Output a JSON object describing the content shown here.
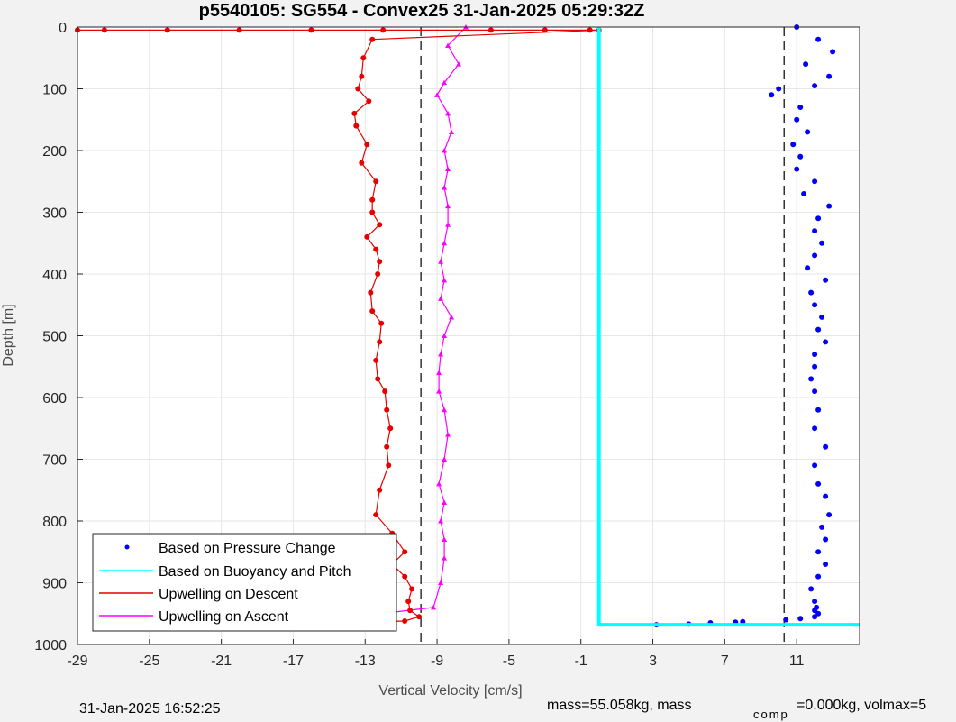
{
  "chart_data": {
    "type": "scatter",
    "title": "p5540105: SG554 - Convex25 31-Jan-2025 05:29:32Z",
    "xlabel": "Vertical Velocity [cm/s]",
    "ylabel": "Depth [m]",
    "xlim": [
      -29,
      14.5
    ],
    "ylim": [
      0,
      1000
    ],
    "y_reversed": true,
    "grid": true,
    "legend_position": "bottom-left",
    "xticks": [
      -29,
      -25,
      -21,
      -17,
      -13,
      -9,
      -5,
      -1,
      3,
      7,
      11
    ],
    "xtick_labels": [
      "-29",
      "-25",
      "-21",
      "-17",
      "-13",
      "-9",
      "-5",
      "-1",
      "3",
      "7",
      "11"
    ],
    "yticks": [
      0,
      100,
      200,
      300,
      400,
      500,
      600,
      700,
      800,
      900,
      1000
    ],
    "ytick_labels": [
      "0",
      "100",
      "200",
      "300",
      "400",
      "500",
      "600",
      "700",
      "800",
      "900",
      "1000"
    ],
    "reference_lines": [
      {
        "x": -9.9,
        "style": "dashed",
        "color": "#000000"
      },
      {
        "x": 10.3,
        "style": "dashed",
        "color": "#000000"
      }
    ],
    "series": [
      {
        "name": "Based on Pressure Change",
        "color": "#0000ff",
        "marker": "dot",
        "x": [
          11.0,
          12.2,
          13.0,
          11.5,
          12.8,
          12.0,
          10.0,
          9.6,
          11.2,
          11.0,
          11.6,
          10.8,
          11.2,
          11.0,
          12.0,
          11.4,
          12.8,
          12.2,
          12.0,
          12.4,
          12.0,
          11.6,
          12.6,
          11.8,
          12.0,
          12.4,
          12.2,
          12.6,
          12.0,
          12.0,
          11.8,
          12.0,
          12.2,
          12.0,
          12.6,
          12.0,
          12.2,
          12.6,
          12.8,
          12.4,
          12.6,
          12.2,
          12.6,
          12.2,
          11.8,
          12.0,
          12.1,
          12.0,
          12.2,
          12.0,
          11.2,
          10.4,
          8.0,
          7.6,
          6.2,
          5.0,
          3.2
        ],
        "y": [
          0,
          20,
          40,
          60,
          80,
          95,
          100,
          110,
          130,
          150,
          170,
          190,
          210,
          230,
          250,
          270,
          290,
          310,
          330,
          350,
          370,
          390,
          410,
          430,
          450,
          470,
          490,
          510,
          530,
          550,
          570,
          590,
          620,
          650,
          680,
          710,
          740,
          760,
          790,
          810,
          830,
          850,
          870,
          890,
          910,
          930,
          940,
          945,
          950,
          955,
          958,
          960,
          963,
          964,
          965,
          967,
          968
        ]
      },
      {
        "name": "Based on Buoyancy and Pitch",
        "color": "#00ffff",
        "marker": "line",
        "x": [
          0.0,
          0.0,
          0.0,
          13.0,
          14.5
        ],
        "y": [
          0,
          500,
          968,
          968,
          968
        ]
      },
      {
        "name": "Upwelling on Descent",
        "color": "#e60000",
        "marker": "dot-line",
        "x": [
          -29.0,
          -27.5,
          -24.0,
          -20.0,
          -16.0,
          -12.0,
          -6.0,
          -3.0,
          -0.5,
          0.0,
          -12.6,
          -13.1,
          -13.2,
          -13.4,
          -12.8,
          -13.6,
          -13.5,
          -12.9,
          -13.2,
          -12.4,
          -12.6,
          -12.6,
          -12.2,
          -12.9,
          -12.4,
          -12.2,
          -12.3,
          -12.7,
          -12.6,
          -12.1,
          -12.2,
          -12.4,
          -12.3,
          -11.9,
          -11.8,
          -11.6,
          -11.8,
          -11.7,
          -12.2,
          -12.4,
          -11.5,
          -10.8,
          -11.5,
          -10.8,
          -10.4,
          -10.6,
          -10.5,
          -10.0,
          -10.8,
          -13.5
        ],
        "y": [
          5,
          5,
          5,
          5,
          5,
          5,
          5,
          5,
          5,
          5,
          20,
          50,
          80,
          100,
          120,
          140,
          160,
          190,
          220,
          250,
          280,
          300,
          320,
          340,
          360,
          380,
          400,
          430,
          460,
          480,
          510,
          540,
          570,
          590,
          620,
          650,
          680,
          710,
          750,
          790,
          820,
          850,
          870,
          890,
          910,
          930,
          945,
          955,
          962,
          964
        ]
      },
      {
        "name": "Upwelling on Ascent",
        "color": "#ff00ff",
        "marker": "triangle-line",
        "x": [
          -7.4,
          -8.4,
          -7.8,
          -8.6,
          -9.0,
          -8.4,
          -8.2,
          -8.6,
          -8.4,
          -8.6,
          -8.4,
          -8.4,
          -8.6,
          -8.8,
          -8.6,
          -8.8,
          -8.2,
          -8.6,
          -8.8,
          -8.9,
          -8.9,
          -8.6,
          -8.4,
          -8.6,
          -8.9,
          -8.6,
          -8.8,
          -8.6,
          -8.6,
          -8.8,
          -9.2,
          -15.0
        ],
        "y": [
          0,
          30,
          60,
          90,
          110,
          140,
          170,
          200,
          230,
          260,
          290,
          320,
          350,
          380,
          410,
          440,
          470,
          500,
          530,
          560,
          590,
          620,
          660,
          700,
          740,
          770,
          800,
          830,
          860,
          900,
          940,
          960
        ]
      }
    ],
    "legend": [
      "Based on Pressure Change",
      "Based on Buoyancy and Pitch",
      "Upwelling on Descent",
      "Upwelling on Ascent"
    ]
  },
  "footer": {
    "timestamp": "31-Jan-2025 16:52:25",
    "mass_text": "mass=55.058kg, mass",
    "comp_sub": "comp",
    "comp_text": "=0.000kg, volmax=5"
  }
}
